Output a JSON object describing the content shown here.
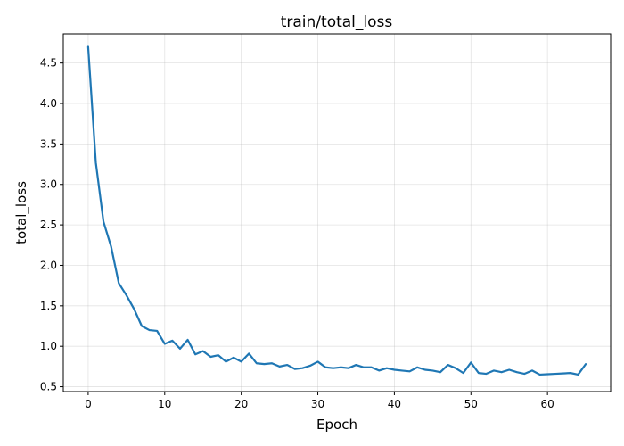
{
  "chart_data": {
    "type": "line",
    "title": "train/total_loss",
    "xlabel": "Epoch",
    "ylabel": "total_loss",
    "xlim": [
      -3.25,
      68.25
    ],
    "ylim": [
      0.44,
      4.86
    ],
    "grid": true,
    "x_ticks": [
      0,
      10,
      20,
      30,
      40,
      50,
      60
    ],
    "y_ticks": [
      0.5,
      1.0,
      1.5,
      2.0,
      2.5,
      3.0,
      3.5,
      4.0,
      4.5
    ],
    "x_tick_labels": [
      "0",
      "10",
      "20",
      "30",
      "40",
      "50",
      "60"
    ],
    "y_tick_labels": [
      "0.5",
      "1.0",
      "1.5",
      "2.0",
      "2.5",
      "3.0",
      "3.5",
      "4.0",
      "4.5"
    ],
    "series": [
      {
        "color": "#1f77b4",
        "x": [
          0,
          1,
          2,
          3,
          4,
          5,
          6,
          7,
          8,
          9,
          10,
          11,
          12,
          13,
          14,
          15,
          16,
          17,
          18,
          19,
          20,
          21,
          22,
          23,
          24,
          25,
          26,
          27,
          28,
          29,
          30,
          31,
          32,
          33,
          34,
          35,
          36,
          37,
          38,
          39,
          40,
          41,
          42,
          43,
          44,
          45,
          46,
          47,
          48,
          49,
          50,
          51,
          52,
          53,
          54,
          55,
          56,
          57,
          58,
          59,
          60,
          61,
          62,
          63,
          64,
          65
        ],
        "values": [
          4.7,
          3.27,
          2.54,
          2.23,
          1.78,
          1.63,
          1.46,
          1.25,
          1.2,
          1.19,
          1.03,
          1.07,
          0.97,
          1.08,
          0.9,
          0.94,
          0.87,
          0.89,
          0.81,
          0.86,
          0.81,
          0.91,
          0.79,
          0.78,
          0.79,
          0.75,
          0.77,
          0.72,
          0.73,
          0.76,
          0.81,
          0.74,
          0.73,
          0.74,
          0.73,
          0.77,
          0.74,
          0.74,
          0.7,
          0.73,
          0.71,
          0.7,
          0.69,
          0.74,
          0.71,
          0.7,
          0.68,
          0.77,
          0.73,
          0.67,
          0.8,
          0.67,
          0.66,
          0.7,
          0.68,
          0.71,
          0.68,
          0.66,
          0.7,
          0.65,
          0.655,
          0.66,
          0.665,
          0.67,
          0.65,
          0.78
        ]
      }
    ]
  }
}
